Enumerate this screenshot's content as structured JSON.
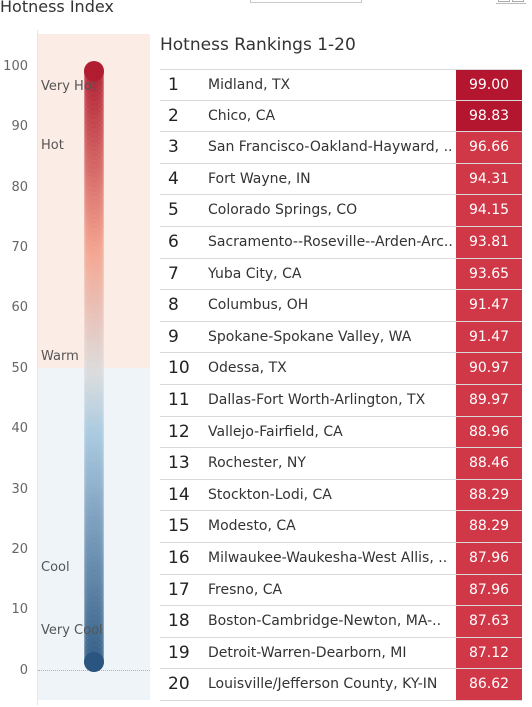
{
  "header": {
    "title": "Hotness Index"
  },
  "gauge": {
    "ticks": [
      "100",
      "90",
      "80",
      "70",
      "60",
      "50",
      "40",
      "30",
      "20",
      "10",
      "0"
    ],
    "zones": [
      "Very Hot",
      "Hot",
      "Warm",
      "Cool",
      "Very Cool"
    ],
    "colors": {
      "hot_bg": "#fcece6",
      "cool_bg": "#eef4f8",
      "hottest": "#b01c30",
      "warm": "#f4a590",
      "neutral": "#dcdcdc",
      "coolish": "#a9c9e0",
      "coldest": "#2a5580"
    }
  },
  "rankings": {
    "title": "Hotness Rankings 1-20",
    "score_colors": {
      "high": "#b5162f",
      "low": "#d13847"
    },
    "rows": [
      {
        "rank": "1",
        "city": "Midland, TX",
        "score": "99.00"
      },
      {
        "rank": "2",
        "city": "Chico, CA",
        "score": "98.83"
      },
      {
        "rank": "3",
        "city": "San Francisco-Oakland-Hayward, ..",
        "score": "96.66"
      },
      {
        "rank": "4",
        "city": "Fort Wayne, IN",
        "score": "94.31"
      },
      {
        "rank": "5",
        "city": "Colorado Springs, CO",
        "score": "94.15"
      },
      {
        "rank": "6",
        "city": "Sacramento--Roseville--Arden-Arc..",
        "score": "93.81"
      },
      {
        "rank": "7",
        "city": "Yuba City, CA",
        "score": "93.65"
      },
      {
        "rank": "8",
        "city": "Columbus, OH",
        "score": "91.47"
      },
      {
        "rank": "9",
        "city": "Spokane-Spokane Valley, WA",
        "score": "91.47"
      },
      {
        "rank": "10",
        "city": "Odessa, TX",
        "score": "90.97"
      },
      {
        "rank": "11",
        "city": "Dallas-Fort Worth-Arlington, TX",
        "score": "89.97"
      },
      {
        "rank": "12",
        "city": "Vallejo-Fairfield, CA",
        "score": "88.96"
      },
      {
        "rank": "13",
        "city": "Rochester, NY",
        "score": "88.46"
      },
      {
        "rank": "14",
        "city": "Stockton-Lodi, CA",
        "score": "88.29"
      },
      {
        "rank": "15",
        "city": "Modesto, CA",
        "score": "88.29"
      },
      {
        "rank": "16",
        "city": "Milwaukee-Waukesha-West Allis, ..",
        "score": "87.96"
      },
      {
        "rank": "17",
        "city": "Fresno, CA",
        "score": "87.96"
      },
      {
        "rank": "18",
        "city": "Boston-Cambridge-Newton, MA-..",
        "score": "87.63"
      },
      {
        "rank": "19",
        "city": "Detroit-Warren-Dearborn, MI",
        "score": "87.12"
      },
      {
        "rank": "20",
        "city": "Louisville/Jefferson County, KY-IN",
        "score": "86.62"
      }
    ]
  }
}
